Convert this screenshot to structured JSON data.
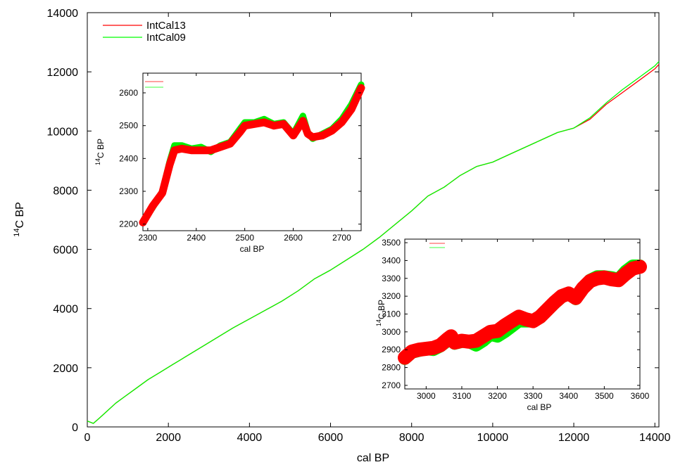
{
  "chart_data": [
    {
      "id": "main",
      "type": "line",
      "title": "",
      "xlabel": "cal BP",
      "ylabel": "14C BP",
      "ylabel_prefix": "14",
      "ylabel_rest": "C BP",
      "xlim": [
        0,
        14100
      ],
      "ylim": [
        0,
        14000
      ],
      "xticks": [
        "0",
        "2000",
        "4000",
        "6000",
        "8000",
        "10000",
        "12000",
        "14000"
      ],
      "yticks": [
        "0",
        "2000",
        "4000",
        "6000",
        "8000",
        "10000",
        "12000",
        "14000"
      ],
      "legend_position": "top-left",
      "grid": false,
      "series": [
        {
          "name": "IntCal13",
          "color": "#ff0000",
          "x": [
            0,
            150,
            300,
            500,
            700,
            900,
            1200,
            1500,
            1800,
            2100,
            2400,
            2700,
            3000,
            3300,
            3600,
            4000,
            4400,
            4800,
            5200,
            5600,
            6000,
            6400,
            6800,
            7200,
            7600,
            8000,
            8400,
            8800,
            9200,
            9600,
            10000,
            10400,
            10800,
            11200,
            11600,
            12000,
            12400,
            12800,
            13200,
            13600,
            14000,
            14100
          ],
          "y": [
            200,
            120,
            300,
            550,
            800,
            1000,
            1300,
            1600,
            1850,
            2100,
            2350,
            2600,
            2850,
            3100,
            3350,
            3650,
            3950,
            4250,
            4600,
            5000,
            5300,
            5650,
            6000,
            6400,
            6850,
            7300,
            7800,
            8100,
            8500,
            8800,
            8950,
            9200,
            9450,
            9700,
            9950,
            10100,
            10400,
            10900,
            11300,
            11700,
            12100,
            12250
          ]
        },
        {
          "name": "IntCal09",
          "color": "#00ff00",
          "x": [
            0,
            150,
            300,
            500,
            700,
            900,
            1200,
            1500,
            1800,
            2100,
            2400,
            2700,
            3000,
            3300,
            3600,
            4000,
            4400,
            4800,
            5200,
            5600,
            6000,
            6400,
            6800,
            7200,
            7600,
            8000,
            8400,
            8800,
            9200,
            9600,
            10000,
            10400,
            10800,
            11200,
            11600,
            12000,
            12400,
            12800,
            13200,
            13600,
            14000,
            14100
          ],
          "y": [
            200,
            120,
            300,
            550,
            800,
            1000,
            1300,
            1600,
            1850,
            2100,
            2350,
            2600,
            2850,
            3100,
            3350,
            3650,
            3950,
            4250,
            4600,
            5000,
            5300,
            5650,
            6000,
            6400,
            6850,
            7300,
            7800,
            8100,
            8500,
            8800,
            8950,
            9200,
            9450,
            9700,
            9950,
            10100,
            10450,
            10950,
            11400,
            11800,
            12200,
            12350
          ]
        }
      ]
    },
    {
      "id": "inset1",
      "type": "area",
      "xlabel": "cal BP",
      "ylabel_prefix": "14",
      "ylabel_rest": "C BP",
      "xlim": [
        2290,
        2740
      ],
      "ylim": [
        2180,
        2660
      ],
      "xticks": [
        "2300",
        "2400",
        "2500",
        "2600",
        "2700"
      ],
      "yticks": [
        "2200",
        "2300",
        "2400",
        "2500",
        "2600"
      ],
      "legend_position": "top-left",
      "series": [
        {
          "name": "IntCal09",
          "color": "#00ee00",
          "x": [
            2290,
            2310,
            2330,
            2345,
            2355,
            2370,
            2390,
            2410,
            2430,
            2450,
            2470,
            2490,
            2500,
            2520,
            2540,
            2560,
            2580,
            2600,
            2620,
            2630,
            2640,
            2660,
            2680,
            2700,
            2720,
            2740
          ],
          "y": [
            2205,
            2250,
            2300,
            2390,
            2440,
            2440,
            2430,
            2435,
            2420,
            2440,
            2450,
            2490,
            2510,
            2510,
            2520,
            2505,
            2510,
            2475,
            2530,
            2480,
            2460,
            2475,
            2490,
            2520,
            2565,
            2625
          ],
          "band": 9
        },
        {
          "name": "IntCal13",
          "color": "#ff0000",
          "x": [
            2290,
            2310,
            2330,
            2345,
            2355,
            2370,
            2390,
            2410,
            2430,
            2450,
            2470,
            2490,
            2500,
            2520,
            2540,
            2560,
            2580,
            2600,
            2620,
            2630,
            2640,
            2660,
            2680,
            2700,
            2720,
            2740
          ],
          "y": [
            2205,
            2255,
            2295,
            2380,
            2425,
            2430,
            2425,
            2425,
            2425,
            2435,
            2445,
            2480,
            2500,
            2505,
            2510,
            2500,
            2505,
            2470,
            2515,
            2475,
            2465,
            2470,
            2485,
            2510,
            2550,
            2615
          ],
          "band": 11
        }
      ]
    },
    {
      "id": "inset2",
      "type": "area",
      "xlabel": "cal BP",
      "ylabel_prefix": "14",
      "ylabel_rest": "C BP",
      "xlim": [
        2940,
        3600
      ],
      "ylim": [
        2680,
        3520
      ],
      "xticks": [
        "3000",
        "3100",
        "3200",
        "3300",
        "3400",
        "3500",
        "3600"
      ],
      "yticks": [
        "2700",
        "2800",
        "2900",
        "3000",
        "3100",
        "3200",
        "3300",
        "3400",
        "3500"
      ],
      "legend_position": "top-left",
      "series": [
        {
          "name": "IntCal09",
          "color": "#00ee00",
          "x": [
            2940,
            2960,
            2980,
            3000,
            3020,
            3040,
            3060,
            3070,
            3080,
            3100,
            3120,
            3140,
            3160,
            3180,
            3200,
            3220,
            3240,
            3260,
            3280,
            3300,
            3320,
            3340,
            3360,
            3380,
            3400,
            3420,
            3440,
            3460,
            3480,
            3500,
            3520,
            3540,
            3560,
            3580,
            3600
          ],
          "y": [
            2850,
            2885,
            2895,
            2905,
            2900,
            2920,
            2950,
            2975,
            2935,
            2945,
            2945,
            2925,
            2950,
            2985,
            2975,
            3000,
            3030,
            3060,
            3060,
            3060,
            3080,
            3120,
            3160,
            3195,
            3215,
            3185,
            3245,
            3290,
            3310,
            3310,
            3305,
            3295,
            3340,
            3370,
            3370
          ],
          "band": 18
        },
        {
          "name": "IntCal13",
          "color": "#ff0000",
          "x": [
            2940,
            2960,
            2980,
            3000,
            3020,
            3040,
            3060,
            3070,
            3080,
            3100,
            3120,
            3140,
            3160,
            3180,
            3200,
            3220,
            3240,
            3260,
            3280,
            3300,
            3320,
            3340,
            3360,
            3380,
            3400,
            3420,
            3440,
            3460,
            3480,
            3500,
            3520,
            3540,
            3560,
            3580,
            3600
          ],
          "y": [
            2855,
            2890,
            2900,
            2905,
            2910,
            2925,
            2960,
            2975,
            2940,
            2950,
            2945,
            2950,
            2975,
            3000,
            3005,
            3035,
            3060,
            3085,
            3070,
            3060,
            3085,
            3125,
            3165,
            3200,
            3215,
            3190,
            3245,
            3285,
            3300,
            3305,
            3295,
            3290,
            3325,
            3355,
            3365
          ],
          "band": 20
        }
      ]
    }
  ]
}
